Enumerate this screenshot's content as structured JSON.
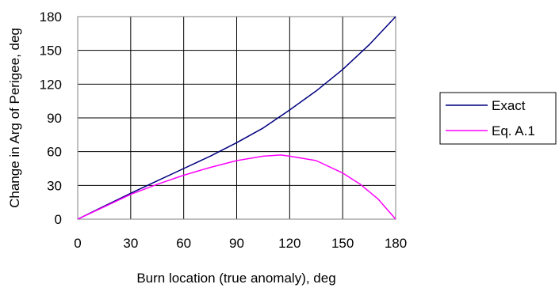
{
  "chart_data": {
    "type": "line",
    "title": "",
    "xlabel": "Burn location (true anomaly), deg",
    "ylabel": "Change in Arg of Perigee, deg",
    "xlim": [
      0,
      180
    ],
    "ylim": [
      0,
      180
    ],
    "xticks": [
      0,
      30,
      60,
      90,
      120,
      150,
      180
    ],
    "yticks": [
      0,
      30,
      60,
      90,
      120,
      150,
      180
    ],
    "grid": true,
    "legend_position": "right",
    "series": [
      {
        "name": "Exact",
        "color": "#000080",
        "x": [
          0,
          15,
          30,
          45,
          60,
          75,
          90,
          105,
          120,
          135,
          150,
          165,
          180
        ],
        "y": [
          0,
          11.5,
          23,
          34,
          45,
          56,
          68,
          81,
          97,
          114,
          133,
          155,
          180
        ]
      },
      {
        "name": "Eq. A.1",
        "color": "#ff00ff",
        "x": [
          0,
          15,
          30,
          45,
          60,
          75,
          90,
          105,
          115,
          120,
          135,
          150,
          160,
          170,
          180
        ],
        "y": [
          0,
          11,
          22,
          31,
          39,
          46,
          52,
          56,
          57,
          56,
          52,
          41,
          31,
          18,
          0
        ]
      }
    ]
  }
}
